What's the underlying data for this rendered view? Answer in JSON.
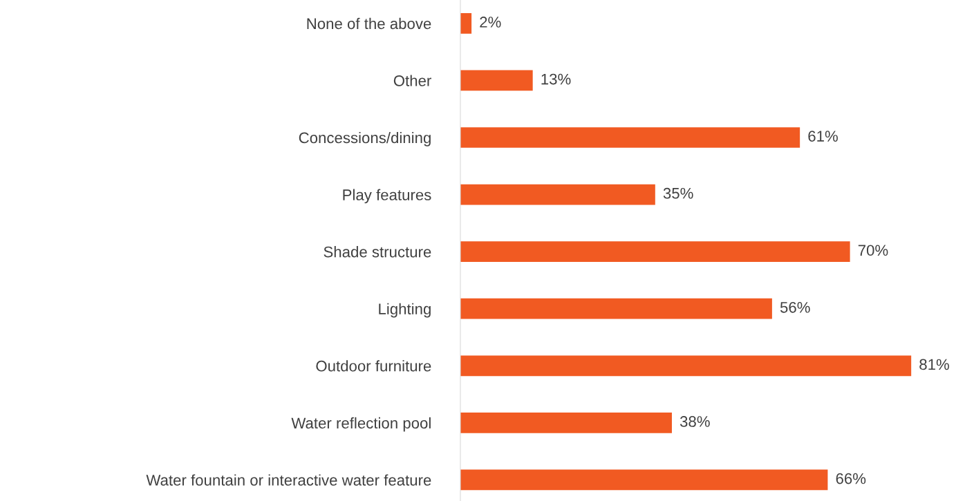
{
  "chart_data": {
    "type": "bar",
    "orientation": "horizontal",
    "categories": [
      "None of the above",
      "Other",
      "Concessions/dining",
      "Play features",
      "Shade structure",
      "Lighting",
      "Outdoor furniture",
      "Water reflection pool",
      "Water fountain or interactive water feature"
    ],
    "values": [
      2,
      13,
      61,
      35,
      70,
      56,
      81,
      38,
      66
    ],
    "value_labels": [
      "2%",
      "13%",
      "61%",
      "35%",
      "70%",
      "56%",
      "81%",
      "38%",
      "66%"
    ],
    "color": "#f15a22",
    "grid": false,
    "legend": false
  }
}
